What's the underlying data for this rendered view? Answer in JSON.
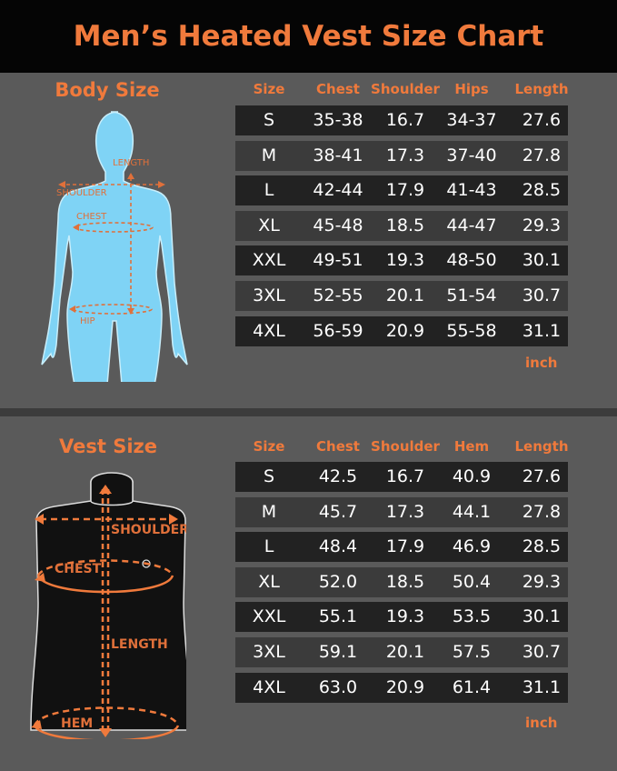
{
  "title": "Men’s Heated Vest Size Chart",
  "body_size": {
    "heading": "Body Size",
    "figure_labels": [
      "LENGTH",
      "SHOULDER",
      "CHEST",
      "HIP"
    ],
    "columns": [
      "Size",
      "Chest",
      "Shoulder",
      "Hips",
      "Length"
    ],
    "rows": [
      [
        "S",
        "35-38",
        "16.7",
        "34-37",
        "27.6"
      ],
      [
        "M",
        "38-41",
        "17.3",
        "37-40",
        "27.8"
      ],
      [
        "L",
        "42-44",
        "17.9",
        "41-43",
        "28.5"
      ],
      [
        "XL",
        "45-48",
        "18.5",
        "44-47",
        "29.3"
      ],
      [
        "XXL",
        "49-51",
        "19.3",
        "48-50",
        "30.1"
      ],
      [
        "3XL",
        "52-55",
        "20.1",
        "51-54",
        "30.7"
      ],
      [
        "4XL",
        "56-59",
        "20.9",
        "55-58",
        "31.1"
      ]
    ],
    "unit": "inch"
  },
  "vest_size": {
    "heading": "Vest Size",
    "figure_labels": [
      "SHOULDER",
      "CHEST",
      "LENGTH",
      "HEM"
    ],
    "columns": [
      "Size",
      "Chest",
      "Shoulder",
      "Hem",
      "Length"
    ],
    "rows": [
      [
        "S",
        "42.5",
        "16.7",
        "40.9",
        "27.6"
      ],
      [
        "M",
        "45.7",
        "17.3",
        "44.1",
        "27.8"
      ],
      [
        "L",
        "48.4",
        "17.9",
        "46.9",
        "28.5"
      ],
      [
        "XL",
        "52.0",
        "18.5",
        "50.4",
        "29.3"
      ],
      [
        "XXL",
        "55.1",
        "19.3",
        "53.5",
        "30.1"
      ],
      [
        "3XL",
        "59.1",
        "20.1",
        "57.5",
        "30.7"
      ],
      [
        "4XL",
        "63.0",
        "20.9",
        "61.4",
        "31.1"
      ]
    ],
    "unit": "inch"
  },
  "colors": {
    "accent": "#f07a3c",
    "body_figure": "#7fd3f5",
    "row_dark": "#222222",
    "row_light": "#3b3b3b",
    "background": "#5a5a5a"
  }
}
